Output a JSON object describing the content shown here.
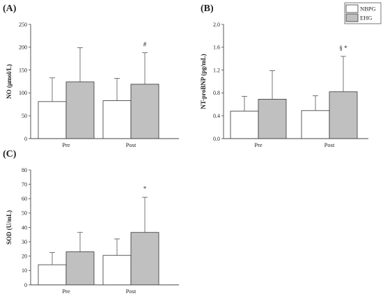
{
  "legend": [
    {
      "name": "NBPG",
      "color": "#ffffff"
    },
    {
      "name": "EHG",
      "color": "#c0c0c0"
    }
  ],
  "chart_data": [
    {
      "panel": "(A)",
      "type": "bar",
      "ylabel": "NO (μmol/L)",
      "ylim": [
        0,
        250
      ],
      "yticks": [
        0,
        50,
        100,
        150,
        200,
        250
      ],
      "ytick_labels": [
        "0",
        "50",
        "100",
        "150",
        "200",
        "250"
      ],
      "categories": [
        "Pre",
        "Post"
      ],
      "series": [
        {
          "name": "NBPG",
          "color": "#ffffff",
          "values": [
            81,
            83
          ],
          "errors": [
            52,
            49
          ]
        },
        {
          "name": "EHG",
          "color": "#c0c0c0",
          "values": [
            124,
            119
          ],
          "errors": [
            75,
            69
          ]
        }
      ],
      "annotations": [
        {
          "category": 1,
          "series": 1,
          "text": "#"
        }
      ]
    },
    {
      "panel": "(B)",
      "type": "bar",
      "ylabel": "NT-proBNP (pg/mL)",
      "ylim": [
        0,
        2.0
      ],
      "yticks": [
        0,
        0.4,
        0.8,
        1.2,
        1.6,
        2.0
      ],
      "ytick_labels": [
        "0.0",
        "0.4",
        "0.8",
        "1.2",
        "1.6",
        "2.0"
      ],
      "categories": [
        "Pre",
        "Post"
      ],
      "series": [
        {
          "name": "NBPG",
          "color": "#ffffff",
          "values": [
            0.48,
            0.49
          ],
          "errors": [
            0.26,
            0.26
          ]
        },
        {
          "name": "EHG",
          "color": "#c0c0c0",
          "values": [
            0.69,
            0.82
          ],
          "errors": [
            0.5,
            0.62
          ]
        }
      ],
      "annotations": [
        {
          "category": 1,
          "series": 1,
          "text": "§ *"
        }
      ]
    },
    {
      "panel": "(C)",
      "type": "bar",
      "ylabel": "SOD (U/mL)",
      "ylim": [
        0,
        80
      ],
      "yticks": [
        0,
        10,
        20,
        30,
        40,
        50,
        60,
        70,
        80
      ],
      "ytick_labels": [
        "0",
        "10",
        "20",
        "30",
        "40",
        "50",
        "60",
        "70",
        "80"
      ],
      "categories": [
        "Pre",
        "Post"
      ],
      "series": [
        {
          "name": "NBPG",
          "color": "#ffffff",
          "values": [
            14,
            20.5
          ],
          "errors": [
            8.5,
            11.5
          ]
        },
        {
          "name": "EHG",
          "color": "#c0c0c0",
          "values": [
            23,
            36.5
          ],
          "errors": [
            13.5,
            24.5
          ]
        }
      ],
      "annotations": [
        {
          "category": 1,
          "series": 1,
          "text": "*"
        }
      ]
    }
  ]
}
